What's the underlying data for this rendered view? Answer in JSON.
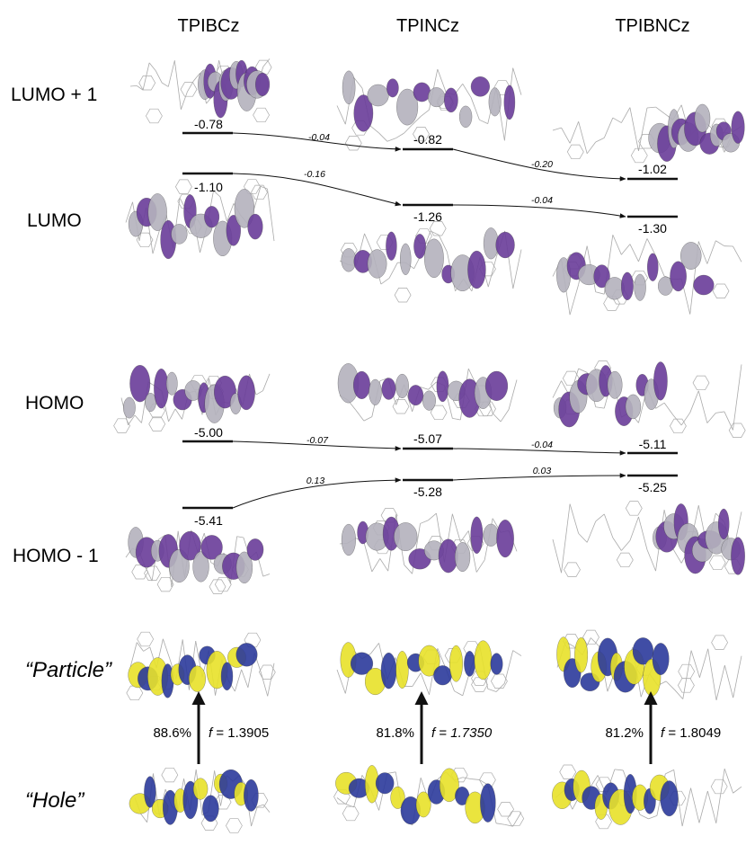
{
  "columns": [
    {
      "name": "TPIBCz"
    },
    {
      "name": "TPINCz"
    },
    {
      "name": "TPIBNCz"
    }
  ],
  "rows": {
    "lumo_plus_1": "LUMO + 1",
    "lumo": "LUMO",
    "homo": "HOMO",
    "homo_minus_1": "HOMO - 1",
    "particle": "“Particle”",
    "hole": "“Hole”"
  },
  "levels": {
    "lumo_plus_1": [
      "-0.78",
      "-0.82",
      "-1.02"
    ],
    "lumo": [
      "-1.10",
      "-1.26",
      "-1.30"
    ],
    "homo": [
      "-5.00",
      "-5.07",
      "-5.11"
    ],
    "homo_minus_1": [
      "-5.41",
      "-5.28",
      "-5.25"
    ]
  },
  "shifts": {
    "lumo_plus_1": [
      "-0.04",
      "-0.20"
    ],
    "lumo": [
      "-0.16",
      "-0.04"
    ],
    "homo": [
      "-0.07",
      "-0.04"
    ],
    "homo_minus_1": [
      "0.13",
      "0.03"
    ]
  },
  "transitions": [
    {
      "percent": "88.6%",
      "f_label": "f",
      "f_eq": " = ",
      "f_value": "1.3905"
    },
    {
      "percent": "81.8%",
      "f_label": "f",
      "f_eq": " = ",
      "f_value": "1.7350"
    },
    {
      "percent": "81.2%",
      "f_label": "f",
      "f_eq": " = ",
      "f_value": "1.8049"
    }
  ],
  "colors": {
    "orbital_purple": "#6a3d9a",
    "orbital_light": "#b4b2bd",
    "density_blue": "#2c3a9c",
    "density_yellow": "#e8e22a",
    "skeleton": "#aaaaaa"
  }
}
